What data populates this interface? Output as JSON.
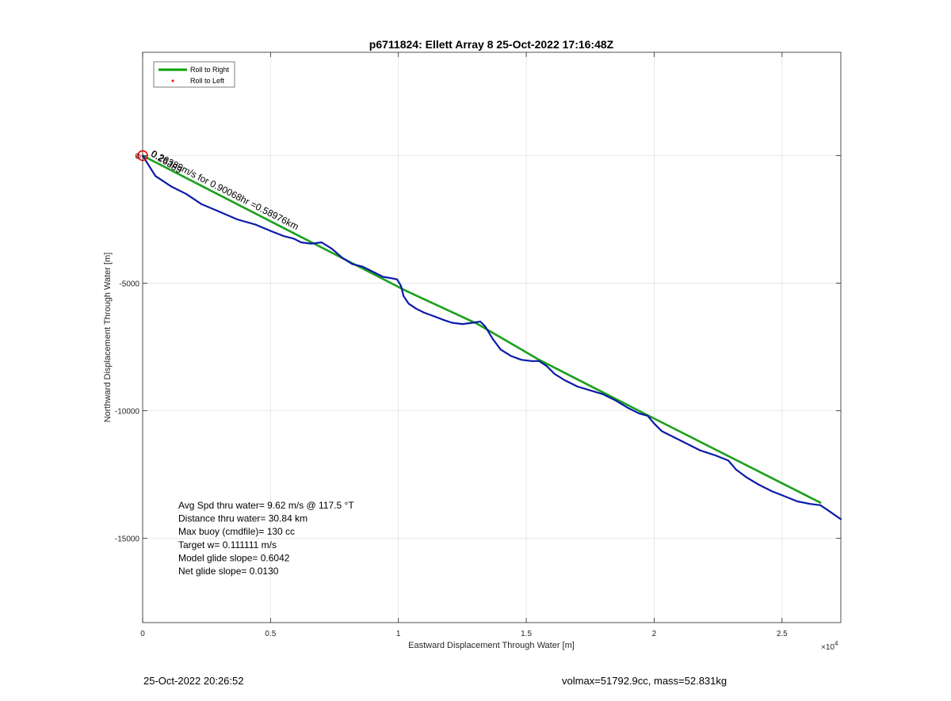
{
  "chart_data": {
    "type": "line",
    "title": "p6711824: Ellett Array 8 25-Oct-2022 17:16:48Z",
    "xlabel": "Eastward Displacement Through Water [m]",
    "ylabel": "Northward Displacement Through Water [m]",
    "x_exponent_label": "×10",
    "x_exponent_power": "4",
    "xlim": [
      0,
      27300
    ],
    "ylim": [
      -18300,
      4050
    ],
    "x_ticks": [
      0,
      5000,
      10000,
      15000,
      20000,
      25000
    ],
    "x_tick_labels": [
      "0",
      "0.5",
      "1",
      "1.5",
      "2",
      "2.5"
    ],
    "y_ticks": [
      0,
      -5000,
      -10000,
      -15000
    ],
    "y_tick_labels": [
      "0",
      "-5000",
      "-10000",
      "-15000"
    ],
    "grid": true,
    "legend_position": "top-left",
    "legend": [
      {
        "label": "Roll to Right",
        "style": "line",
        "color": "#00a000"
      },
      {
        "label": "Roll to Left",
        "style": "dot",
        "color": "#ff0000"
      }
    ],
    "series": [
      {
        "name": "Roll to Right",
        "color": "#1aa01a",
        "x": [
          0,
          10300,
          13100,
          15500,
          19800,
          26500
        ],
        "y": [
          0,
          -5300,
          -6600,
          -8000,
          -10200,
          -13600
        ]
      },
      {
        "color": "#0a1aa8",
        "x": [
          0,
          500,
          1100,
          1700,
          2300,
          3000,
          3700,
          4400,
          5000,
          5500,
          5900,
          6200,
          6600,
          7000,
          7400,
          7800,
          8200,
          8600,
          9000,
          9400,
          9700,
          9950,
          10100,
          10200,
          10400,
          10700,
          11000,
          11400,
          11800,
          12100,
          12500,
          12900,
          13200,
          13400,
          13700,
          14000,
          14400,
          14800,
          15200,
          15500,
          15800,
          16100,
          16500,
          17000,
          17500,
          18000,
          18500,
          19000,
          19400,
          19750,
          20000,
          20300,
          20800,
          21300,
          21800,
          22400,
          22900,
          23200,
          23600,
          24100,
          24600,
          25100,
          25600,
          26100,
          26500,
          26800,
          27300
        ],
        "y": [
          0,
          -800,
          -1200,
          -1500,
          -1900,
          -2200,
          -2500,
          -2700,
          -2950,
          -3150,
          -3250,
          -3400,
          -3450,
          -3400,
          -3650,
          -4000,
          -4250,
          -4350,
          -4550,
          -4750,
          -4800,
          -4850,
          -5100,
          -5500,
          -5800,
          -6000,
          -6150,
          -6300,
          -6450,
          -6550,
          -6600,
          -6550,
          -6500,
          -6700,
          -7200,
          -7600,
          -7850,
          -8000,
          -8050,
          -8050,
          -8250,
          -8550,
          -8800,
          -9050,
          -9200,
          -9350,
          -9600,
          -9900,
          -10100,
          -10200,
          -10500,
          -10800,
          -11050,
          -11300,
          -11550,
          -11750,
          -11950,
          -12300,
          -12600,
          -12900,
          -13150,
          -13350,
          -13550,
          -13650,
          -13700,
          -13900,
          -14250
        ]
      }
    ],
    "markers": [
      {
        "x": 0,
        "y": 0,
        "color": "#ff0000"
      }
    ],
    "annotations": [
      {
        "x": 300,
        "y": 0,
        "angle_deg": 27,
        "text": "0.26389m/s for 0.90068hr =0.58976km"
      },
      {
        "x": 300,
        "y": 0,
        "angle_deg": 32,
        "text": "0.26389"
      }
    ],
    "stats": [
      "Avg Spd thru water=  9.62 m/s @ 117.5 °T",
      "Distance thru water= 30.84 km",
      "Max buoy (cmdfile)= 130 cc",
      "Target w= 0.111111 m/s",
      "Model glide slope= 0.6042",
      "Net glide slope= 0.0130"
    ]
  },
  "footer": {
    "left": "25-Oct-2022 20:26:52",
    "right": "volmax=51792.9cc, mass=52.831kg"
  }
}
